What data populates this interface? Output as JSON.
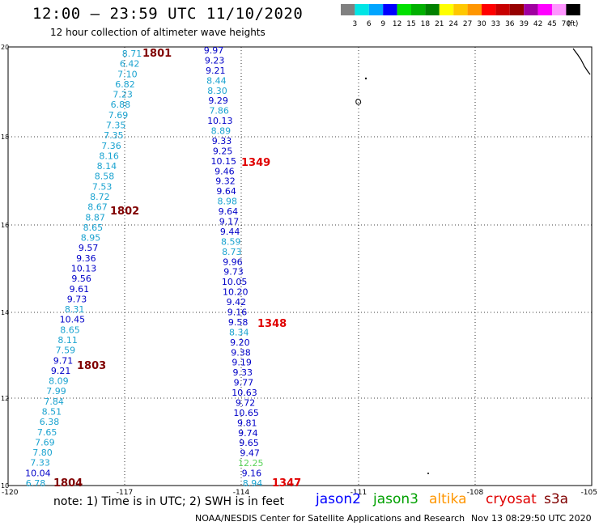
{
  "header": {
    "title": "12:00 — 23:59 UTC 11/10/2020",
    "subtitle": "12 hour collection of altimeter wave heights"
  },
  "colorbar": {
    "colors": [
      "#808080",
      "#00e5e5",
      "#00a5ff",
      "#0000ff",
      "#00e000",
      "#00b000",
      "#008000",
      "#ffff00",
      "#ffc800",
      "#ff9600",
      "#ff0000",
      "#c80000",
      "#960000",
      "#a000a0",
      "#ff00ff",
      "#ff96ff",
      "#000000"
    ],
    "labels": [
      "3",
      "6",
      "9",
      "12",
      "15",
      "18",
      "21",
      "24",
      "27",
      "30",
      "33",
      "36",
      "39",
      "42",
      "45",
      "70"
    ],
    "unit": "(ft)"
  },
  "axes": {
    "x_ticks": [
      "-120",
      "-117",
      "-114",
      "-111",
      "-108",
      "-105"
    ],
    "y_ticks": [
      "20",
      "18",
      "16",
      "14",
      "12",
      "10"
    ]
  },
  "colors": {
    "cyan": "#1ba3d0",
    "blue": "#0000c8",
    "green": "#5ad35a",
    "track_label": "#800000",
    "track_label_red": "#e00000"
  },
  "tracks": [
    {
      "label": "1801",
      "color": "track_label"
    },
    {
      "label": "1802",
      "color": "track_label"
    },
    {
      "label": "1803",
      "color": "track_label"
    },
    {
      "label": "1804",
      "color": "track_label"
    },
    {
      "label": "1349",
      "color": "track_label_red"
    },
    {
      "label": "1348",
      "color": "track_label_red"
    },
    {
      "label": "1347",
      "color": "track_label_red"
    }
  ],
  "west_track_values": [
    {
      "v": "8.71",
      "c": "cyan"
    },
    {
      "v": "6.42",
      "c": "cyan"
    },
    {
      "v": "7.10",
      "c": "cyan"
    },
    {
      "v": "6.82",
      "c": "cyan"
    },
    {
      "v": "7.23",
      "c": "cyan"
    },
    {
      "v": "6.88",
      "c": "cyan"
    },
    {
      "v": "7.69",
      "c": "cyan"
    },
    {
      "v": "7.35",
      "c": "cyan"
    },
    {
      "v": "7.35",
      "c": "cyan"
    },
    {
      "v": "7.36",
      "c": "cyan"
    },
    {
      "v": "8.16",
      "c": "cyan"
    },
    {
      "v": "8.14",
      "c": "cyan"
    },
    {
      "v": "8.58",
      "c": "cyan"
    },
    {
      "v": "7.53",
      "c": "cyan"
    },
    {
      "v": "8.72",
      "c": "cyan"
    },
    {
      "v": "8.67",
      "c": "cyan"
    },
    {
      "v": "8.87",
      "c": "cyan"
    },
    {
      "v": "8.65",
      "c": "cyan"
    },
    {
      "v": "8.95",
      "c": "cyan"
    },
    {
      "v": "9.57",
      "c": "blue"
    },
    {
      "v": "9.36",
      "c": "blue"
    },
    {
      "v": "10.13",
      "c": "blue"
    },
    {
      "v": "9.56",
      "c": "blue"
    },
    {
      "v": "9.61",
      "c": "blue"
    },
    {
      "v": "9.73",
      "c": "blue"
    },
    {
      "v": "8.31",
      "c": "cyan"
    },
    {
      "v": "10.45",
      "c": "blue"
    },
    {
      "v": "8.65",
      "c": "cyan"
    },
    {
      "v": "8.11",
      "c": "cyan"
    },
    {
      "v": "7.59",
      "c": "cyan"
    },
    {
      "v": "9.71",
      "c": "blue"
    },
    {
      "v": "9.21",
      "c": "blue"
    },
    {
      "v": "8.09",
      "c": "cyan"
    },
    {
      "v": "7.99",
      "c": "cyan"
    },
    {
      "v": "7.84",
      "c": "cyan"
    },
    {
      "v": "8.51",
      "c": "cyan"
    },
    {
      "v": "6.38",
      "c": "cyan"
    },
    {
      "v": "7.65",
      "c": "cyan"
    },
    {
      "v": "7.69",
      "c": "cyan"
    },
    {
      "v": "7.80",
      "c": "cyan"
    },
    {
      "v": "7.33",
      "c": "cyan"
    },
    {
      "v": "10.04",
      "c": "blue"
    },
    {
      "v": "6.78",
      "c": "cyan"
    }
  ],
  "east_track_values": [
    {
      "v": "9.97",
      "c": "blue"
    },
    {
      "v": "9.23",
      "c": "blue"
    },
    {
      "v": "9.21",
      "c": "blue"
    },
    {
      "v": "8.44",
      "c": "cyan"
    },
    {
      "v": "8.30",
      "c": "cyan"
    },
    {
      "v": "9.29",
      "c": "blue"
    },
    {
      "v": "7.86",
      "c": "cyan"
    },
    {
      "v": "10.13",
      "c": "blue"
    },
    {
      "v": "8.89",
      "c": "cyan"
    },
    {
      "v": "9.33",
      "c": "blue"
    },
    {
      "v": "9.25",
      "c": "blue"
    },
    {
      "v": "10.15",
      "c": "blue"
    },
    {
      "v": "9.46",
      "c": "blue"
    },
    {
      "v": "9.32",
      "c": "blue"
    },
    {
      "v": "9.64",
      "c": "blue"
    },
    {
      "v": "8.98",
      "c": "cyan"
    },
    {
      "v": "9.64",
      "c": "blue"
    },
    {
      "v": "9.17",
      "c": "blue"
    },
    {
      "v": "9.44",
      "c": "blue"
    },
    {
      "v": "8.59",
      "c": "cyan"
    },
    {
      "v": "8.73",
      "c": "cyan"
    },
    {
      "v": "9.96",
      "c": "blue"
    },
    {
      "v": "9.73",
      "c": "blue"
    },
    {
      "v": "10.05",
      "c": "blue"
    },
    {
      "v": "10.20",
      "c": "blue"
    },
    {
      "v": "9.42",
      "c": "blue"
    },
    {
      "v": "9.16",
      "c": "blue"
    },
    {
      "v": "9.58",
      "c": "blue"
    },
    {
      "v": "8.34",
      "c": "cyan"
    },
    {
      "v": "9.20",
      "c": "blue"
    },
    {
      "v": "9.38",
      "c": "blue"
    },
    {
      "v": "9.19",
      "c": "blue"
    },
    {
      "v": "9.33",
      "c": "blue"
    },
    {
      "v": "9.77",
      "c": "blue"
    },
    {
      "v": "10.63",
      "c": "blue"
    },
    {
      "v": "9.72",
      "c": "blue"
    },
    {
      "v": "10.65",
      "c": "blue"
    },
    {
      "v": "9.81",
      "c": "blue"
    },
    {
      "v": "9.74",
      "c": "blue"
    },
    {
      "v": "9.65",
      "c": "blue"
    },
    {
      "v": "9.47",
      "c": "blue"
    },
    {
      "v": "12.25",
      "c": "green"
    },
    {
      "v": "9.16",
      "c": "blue"
    },
    {
      "v": "8.94",
      "c": "cyan"
    }
  ],
  "footer": {
    "note": "note:  1) Time is in UTC; 2) SWH is in feet",
    "satellites": [
      {
        "name": "jason2",
        "color": "#0000ff"
      },
      {
        "name": "jason3",
        "color": "#00a000"
      },
      {
        "name": "altika",
        "color": "#ff9600"
      },
      {
        "name": "cryosat",
        "color": "#e00000"
      },
      {
        "name": "s3a",
        "color": "#800000"
      }
    ],
    "credit": "NOAA/NESDIS Center for Satellite Applications and Research",
    "timestamp": "Nov 13 08:29:50 UTC 2020"
  }
}
